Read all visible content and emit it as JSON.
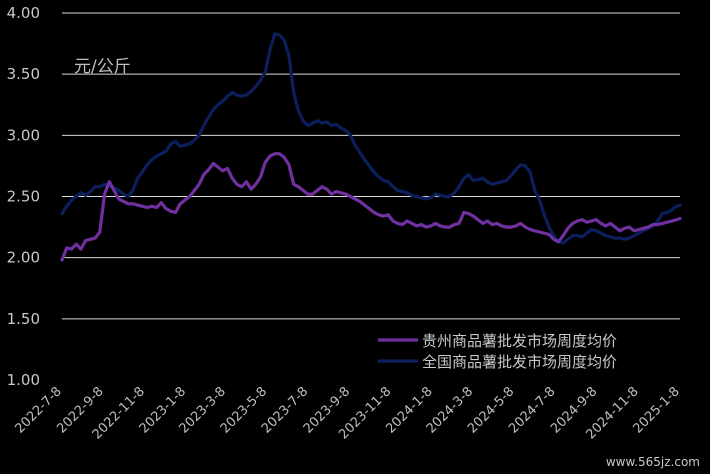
{
  "chart_data": {
    "type": "line",
    "unit_label": "元/公斤",
    "ylim": [
      1.0,
      4.0
    ],
    "yticks": [
      "1.00",
      "1.50",
      "2.00",
      "2.50",
      "3.00",
      "3.50",
      "4.00"
    ],
    "ytick_values": [
      1.0,
      1.5,
      2.0,
      2.5,
      3.0,
      3.5,
      4.0
    ],
    "xlim": [
      "2022-07-08",
      "2025-01-08"
    ],
    "xticks": [
      "2022-7-8",
      "2022-9-8",
      "2022-11-8",
      "2023-1-8",
      "2023-3-8",
      "2023-5-8",
      "2023-7-8",
      "2023-9-8",
      "2023-11-8",
      "2024-1-8",
      "2024-3-8",
      "2024-5-8",
      "2024-7-8",
      "2024-9-8",
      "2024-11-8",
      "2025-1-8"
    ],
    "xtick_dates": [
      "2022-07-08",
      "2022-09-08",
      "2022-11-08",
      "2023-01-08",
      "2023-03-08",
      "2023-05-08",
      "2023-07-08",
      "2023-09-08",
      "2023-11-08",
      "2024-01-08",
      "2024-03-08",
      "2024-05-08",
      "2024-07-08",
      "2024-09-08",
      "2024-11-08",
      "2025-01-08"
    ],
    "grid": true,
    "legend_position": "bottom-right",
    "series": [
      {
        "name": "贵州商品薯批发市场周度均价",
        "color": "#7030a0",
        "points": [
          [
            "2022-07-08",
            1.98
          ],
          [
            "2022-07-15",
            2.08
          ],
          [
            "2022-07-22",
            2.07
          ],
          [
            "2022-07-29",
            2.11
          ],
          [
            "2022-08-05",
            2.07
          ],
          [
            "2022-08-12",
            2.14
          ],
          [
            "2022-08-19",
            2.15
          ],
          [
            "2022-08-26",
            2.16
          ],
          [
            "2022-09-02",
            2.21
          ],
          [
            "2022-09-09",
            2.52
          ],
          [
            "2022-09-16",
            2.62
          ],
          [
            "2022-09-23",
            2.55
          ],
          [
            "2022-09-30",
            2.48
          ],
          [
            "2022-10-07",
            2.46
          ],
          [
            "2022-10-14",
            2.44
          ],
          [
            "2022-10-21",
            2.44
          ],
          [
            "2022-10-28",
            2.43
          ],
          [
            "2022-11-04",
            2.42
          ],
          [
            "2022-11-11",
            2.41
          ],
          [
            "2022-11-18",
            2.42
          ],
          [
            "2022-11-25",
            2.41
          ],
          [
            "2022-12-02",
            2.45
          ],
          [
            "2022-12-09",
            2.4
          ],
          [
            "2022-12-16",
            2.38
          ],
          [
            "2022-12-23",
            2.37
          ],
          [
            "2022-12-30",
            2.44
          ],
          [
            "2023-01-06",
            2.47
          ],
          [
            "2023-01-13",
            2.5
          ],
          [
            "2023-01-20",
            2.55
          ],
          [
            "2023-01-27",
            2.6
          ],
          [
            "2023-02-03",
            2.68
          ],
          [
            "2023-02-10",
            2.72
          ],
          [
            "2023-02-17",
            2.77
          ],
          [
            "2023-02-24",
            2.74
          ],
          [
            "2023-03-03",
            2.71
          ],
          [
            "2023-03-10",
            2.73
          ],
          [
            "2023-03-17",
            2.65
          ],
          [
            "2023-03-24",
            2.6
          ],
          [
            "2023-03-31",
            2.58
          ],
          [
            "2023-04-07",
            2.62
          ],
          [
            "2023-04-14",
            2.56
          ],
          [
            "2023-04-21",
            2.6
          ],
          [
            "2023-04-28",
            2.66
          ],
          [
            "2023-05-05",
            2.78
          ],
          [
            "2023-05-12",
            2.83
          ],
          [
            "2023-05-19",
            2.85
          ],
          [
            "2023-05-26",
            2.85
          ],
          [
            "2023-06-02",
            2.82
          ],
          [
            "2023-06-09",
            2.76
          ],
          [
            "2023-06-16",
            2.6
          ],
          [
            "2023-06-23",
            2.58
          ],
          [
            "2023-06-30",
            2.55
          ],
          [
            "2023-07-07",
            2.52
          ],
          [
            "2023-07-14",
            2.52
          ],
          [
            "2023-07-21",
            2.55
          ],
          [
            "2023-07-28",
            2.58
          ],
          [
            "2023-08-04",
            2.56
          ],
          [
            "2023-08-11",
            2.52
          ],
          [
            "2023-08-18",
            2.54
          ],
          [
            "2023-08-25",
            2.53
          ],
          [
            "2023-09-01",
            2.52
          ],
          [
            "2023-09-08",
            2.5
          ],
          [
            "2023-09-15",
            2.48
          ],
          [
            "2023-09-22",
            2.46
          ],
          [
            "2023-09-29",
            2.43
          ],
          [
            "2023-10-06",
            2.4
          ],
          [
            "2023-10-13",
            2.37
          ],
          [
            "2023-10-20",
            2.35
          ],
          [
            "2023-10-27",
            2.34
          ],
          [
            "2023-11-03",
            2.35
          ],
          [
            "2023-11-10",
            2.3
          ],
          [
            "2023-11-17",
            2.28
          ],
          [
            "2023-11-24",
            2.27
          ],
          [
            "2023-12-01",
            2.3
          ],
          [
            "2023-12-08",
            2.28
          ],
          [
            "2023-12-15",
            2.26
          ],
          [
            "2023-12-22",
            2.27
          ],
          [
            "2023-12-29",
            2.25
          ],
          [
            "2024-01-05",
            2.26
          ],
          [
            "2024-01-12",
            2.28
          ],
          [
            "2024-01-19",
            2.26
          ],
          [
            "2024-01-26",
            2.25
          ],
          [
            "2024-02-02",
            2.25
          ],
          [
            "2024-02-09",
            2.27
          ],
          [
            "2024-02-16",
            2.28
          ],
          [
            "2024-02-23",
            2.37
          ],
          [
            "2024-03-01",
            2.36
          ],
          [
            "2024-03-08",
            2.34
          ],
          [
            "2024-03-15",
            2.31
          ],
          [
            "2024-03-22",
            2.28
          ],
          [
            "2024-03-29",
            2.3
          ],
          [
            "2024-04-05",
            2.27
          ],
          [
            "2024-04-12",
            2.28
          ],
          [
            "2024-04-19",
            2.26
          ],
          [
            "2024-04-26",
            2.25
          ],
          [
            "2024-05-03",
            2.25
          ],
          [
            "2024-05-10",
            2.26
          ],
          [
            "2024-05-17",
            2.28
          ],
          [
            "2024-05-24",
            2.25
          ],
          [
            "2024-05-31",
            2.23
          ],
          [
            "2024-06-07",
            2.22
          ],
          [
            "2024-06-14",
            2.21
          ],
          [
            "2024-06-21",
            2.2
          ],
          [
            "2024-06-28",
            2.19
          ],
          [
            "2024-07-05",
            2.15
          ],
          [
            "2024-07-12",
            2.13
          ],
          [
            "2024-07-19",
            2.18
          ],
          [
            "2024-07-26",
            2.24
          ],
          [
            "2024-08-02",
            2.28
          ],
          [
            "2024-08-09",
            2.3
          ],
          [
            "2024-08-16",
            2.31
          ],
          [
            "2024-08-23",
            2.29
          ],
          [
            "2024-08-30",
            2.3
          ],
          [
            "2024-09-06",
            2.31
          ],
          [
            "2024-09-13",
            2.28
          ],
          [
            "2024-09-20",
            2.26
          ],
          [
            "2024-09-27",
            2.28
          ],
          [
            "2024-10-04",
            2.25
          ],
          [
            "2024-10-11",
            2.22
          ],
          [
            "2024-10-18",
            2.24
          ],
          [
            "2024-10-25",
            2.25
          ],
          [
            "2024-11-01",
            2.22
          ],
          [
            "2024-11-08",
            2.23
          ],
          [
            "2024-11-15",
            2.24
          ],
          [
            "2024-11-22",
            2.25
          ],
          [
            "2024-11-29",
            2.27
          ],
          [
            "2024-12-06",
            2.27
          ],
          [
            "2024-12-13",
            2.28
          ],
          [
            "2024-12-20",
            2.29
          ],
          [
            "2024-12-27",
            2.3
          ],
          [
            "2025-01-03",
            2.31
          ],
          [
            "2025-01-08",
            2.32
          ]
        ]
      },
      {
        "name": "全国商品薯批发市场周度均价",
        "color": "#0c1f5c",
        "points": [
          [
            "2022-07-08",
            2.36
          ],
          [
            "2022-07-15",
            2.42
          ],
          [
            "2022-07-22",
            2.47
          ],
          [
            "2022-07-29",
            2.5
          ],
          [
            "2022-08-05",
            2.53
          ],
          [
            "2022-08-12",
            2.51
          ],
          [
            "2022-08-19",
            2.54
          ],
          [
            "2022-08-26",
            2.58
          ],
          [
            "2022-09-02",
            2.58
          ],
          [
            "2022-09-09",
            2.6
          ],
          [
            "2022-09-16",
            2.59
          ],
          [
            "2022-09-23",
            2.57
          ],
          [
            "2022-09-30",
            2.55
          ],
          [
            "2022-10-07",
            2.52
          ],
          [
            "2022-10-14",
            2.5
          ],
          [
            "2022-10-21",
            2.55
          ],
          [
            "2022-10-28",
            2.65
          ],
          [
            "2022-11-04",
            2.7
          ],
          [
            "2022-11-11",
            2.76
          ],
          [
            "2022-11-18",
            2.8
          ],
          [
            "2022-11-25",
            2.83
          ],
          [
            "2022-12-02",
            2.85
          ],
          [
            "2022-12-09",
            2.87
          ],
          [
            "2022-12-16",
            2.93
          ],
          [
            "2022-12-23",
            2.95
          ],
          [
            "2022-12-30",
            2.91
          ],
          [
            "2023-01-06",
            2.92
          ],
          [
            "2023-01-13",
            2.93
          ],
          [
            "2023-01-20",
            2.96
          ],
          [
            "2023-01-27",
            3.0
          ],
          [
            "2023-02-03",
            3.08
          ],
          [
            "2023-02-10",
            3.15
          ],
          [
            "2023-02-17",
            3.21
          ],
          [
            "2023-02-24",
            3.25
          ],
          [
            "2023-03-03",
            3.28
          ],
          [
            "2023-03-10",
            3.32
          ],
          [
            "2023-03-17",
            3.35
          ],
          [
            "2023-03-24",
            3.33
          ],
          [
            "2023-03-31",
            3.32
          ],
          [
            "2023-04-07",
            3.33
          ],
          [
            "2023-04-14",
            3.36
          ],
          [
            "2023-04-21",
            3.4
          ],
          [
            "2023-04-28",
            3.45
          ],
          [
            "2023-05-05",
            3.52
          ],
          [
            "2023-05-12",
            3.7
          ],
          [
            "2023-05-19",
            3.83
          ],
          [
            "2023-05-26",
            3.82
          ],
          [
            "2023-06-02",
            3.78
          ],
          [
            "2023-06-09",
            3.65
          ],
          [
            "2023-06-16",
            3.35
          ],
          [
            "2023-06-23",
            3.2
          ],
          [
            "2023-06-30",
            3.12
          ],
          [
            "2023-07-07",
            3.08
          ],
          [
            "2023-07-14",
            3.1
          ],
          [
            "2023-07-21",
            3.12
          ],
          [
            "2023-07-28",
            3.1
          ],
          [
            "2023-08-04",
            3.11
          ],
          [
            "2023-08-11",
            3.08
          ],
          [
            "2023-08-18",
            3.09
          ],
          [
            "2023-08-25",
            3.06
          ],
          [
            "2023-09-01",
            3.04
          ],
          [
            "2023-09-08",
            3.0
          ],
          [
            "2023-09-15",
            2.92
          ],
          [
            "2023-09-22",
            2.86
          ],
          [
            "2023-09-29",
            2.8
          ],
          [
            "2023-10-06",
            2.75
          ],
          [
            "2023-10-13",
            2.7
          ],
          [
            "2023-10-20",
            2.66
          ],
          [
            "2023-10-27",
            2.63
          ],
          [
            "2023-11-03",
            2.62
          ],
          [
            "2023-11-10",
            2.58
          ],
          [
            "2023-11-17",
            2.55
          ],
          [
            "2023-11-24",
            2.54
          ],
          [
            "2023-12-01",
            2.53
          ],
          [
            "2023-12-08",
            2.51
          ],
          [
            "2023-12-15",
            2.5
          ],
          [
            "2023-12-22",
            2.49
          ],
          [
            "2023-12-29",
            2.48
          ],
          [
            "2024-01-05",
            2.49
          ],
          [
            "2024-01-12",
            2.52
          ],
          [
            "2024-01-19",
            2.51
          ],
          [
            "2024-01-26",
            2.5
          ],
          [
            "2024-02-02",
            2.5
          ],
          [
            "2024-02-09",
            2.53
          ],
          [
            "2024-02-16",
            2.58
          ],
          [
            "2024-02-23",
            2.65
          ],
          [
            "2024-03-01",
            2.68
          ],
          [
            "2024-03-08",
            2.63
          ],
          [
            "2024-03-15",
            2.64
          ],
          [
            "2024-03-22",
            2.65
          ],
          [
            "2024-03-29",
            2.62
          ],
          [
            "2024-04-05",
            2.6
          ],
          [
            "2024-04-12",
            2.61
          ],
          [
            "2024-04-19",
            2.62
          ],
          [
            "2024-04-26",
            2.63
          ],
          [
            "2024-05-03",
            2.67
          ],
          [
            "2024-05-10",
            2.72
          ],
          [
            "2024-05-17",
            2.76
          ],
          [
            "2024-05-24",
            2.75
          ],
          [
            "2024-05-31",
            2.7
          ],
          [
            "2024-06-07",
            2.55
          ],
          [
            "2024-06-14",
            2.47
          ],
          [
            "2024-06-21",
            2.35
          ],
          [
            "2024-06-28",
            2.25
          ],
          [
            "2024-07-05",
            2.18
          ],
          [
            "2024-07-12",
            2.13
          ],
          [
            "2024-07-19",
            2.12
          ],
          [
            "2024-07-26",
            2.15
          ],
          [
            "2024-08-02",
            2.18
          ],
          [
            "2024-08-09",
            2.18
          ],
          [
            "2024-08-16",
            2.17
          ],
          [
            "2024-08-23",
            2.2
          ],
          [
            "2024-08-30",
            2.23
          ],
          [
            "2024-09-06",
            2.22
          ],
          [
            "2024-09-13",
            2.2
          ],
          [
            "2024-09-20",
            2.18
          ],
          [
            "2024-09-27",
            2.17
          ],
          [
            "2024-10-04",
            2.16
          ],
          [
            "2024-10-11",
            2.16
          ],
          [
            "2024-10-18",
            2.15
          ],
          [
            "2024-10-25",
            2.16
          ],
          [
            "2024-11-01",
            2.18
          ],
          [
            "2024-11-08",
            2.2
          ],
          [
            "2024-11-15",
            2.22
          ],
          [
            "2024-11-22",
            2.24
          ],
          [
            "2024-11-29",
            2.26
          ],
          [
            "2024-12-06",
            2.3
          ],
          [
            "2024-12-13",
            2.36
          ],
          [
            "2024-12-20",
            2.37
          ],
          [
            "2024-12-27",
            2.39
          ],
          [
            "2025-01-03",
            2.42
          ],
          [
            "2025-01-08",
            2.43
          ]
        ]
      }
    ]
  },
  "watermark": "www.565jz.com"
}
